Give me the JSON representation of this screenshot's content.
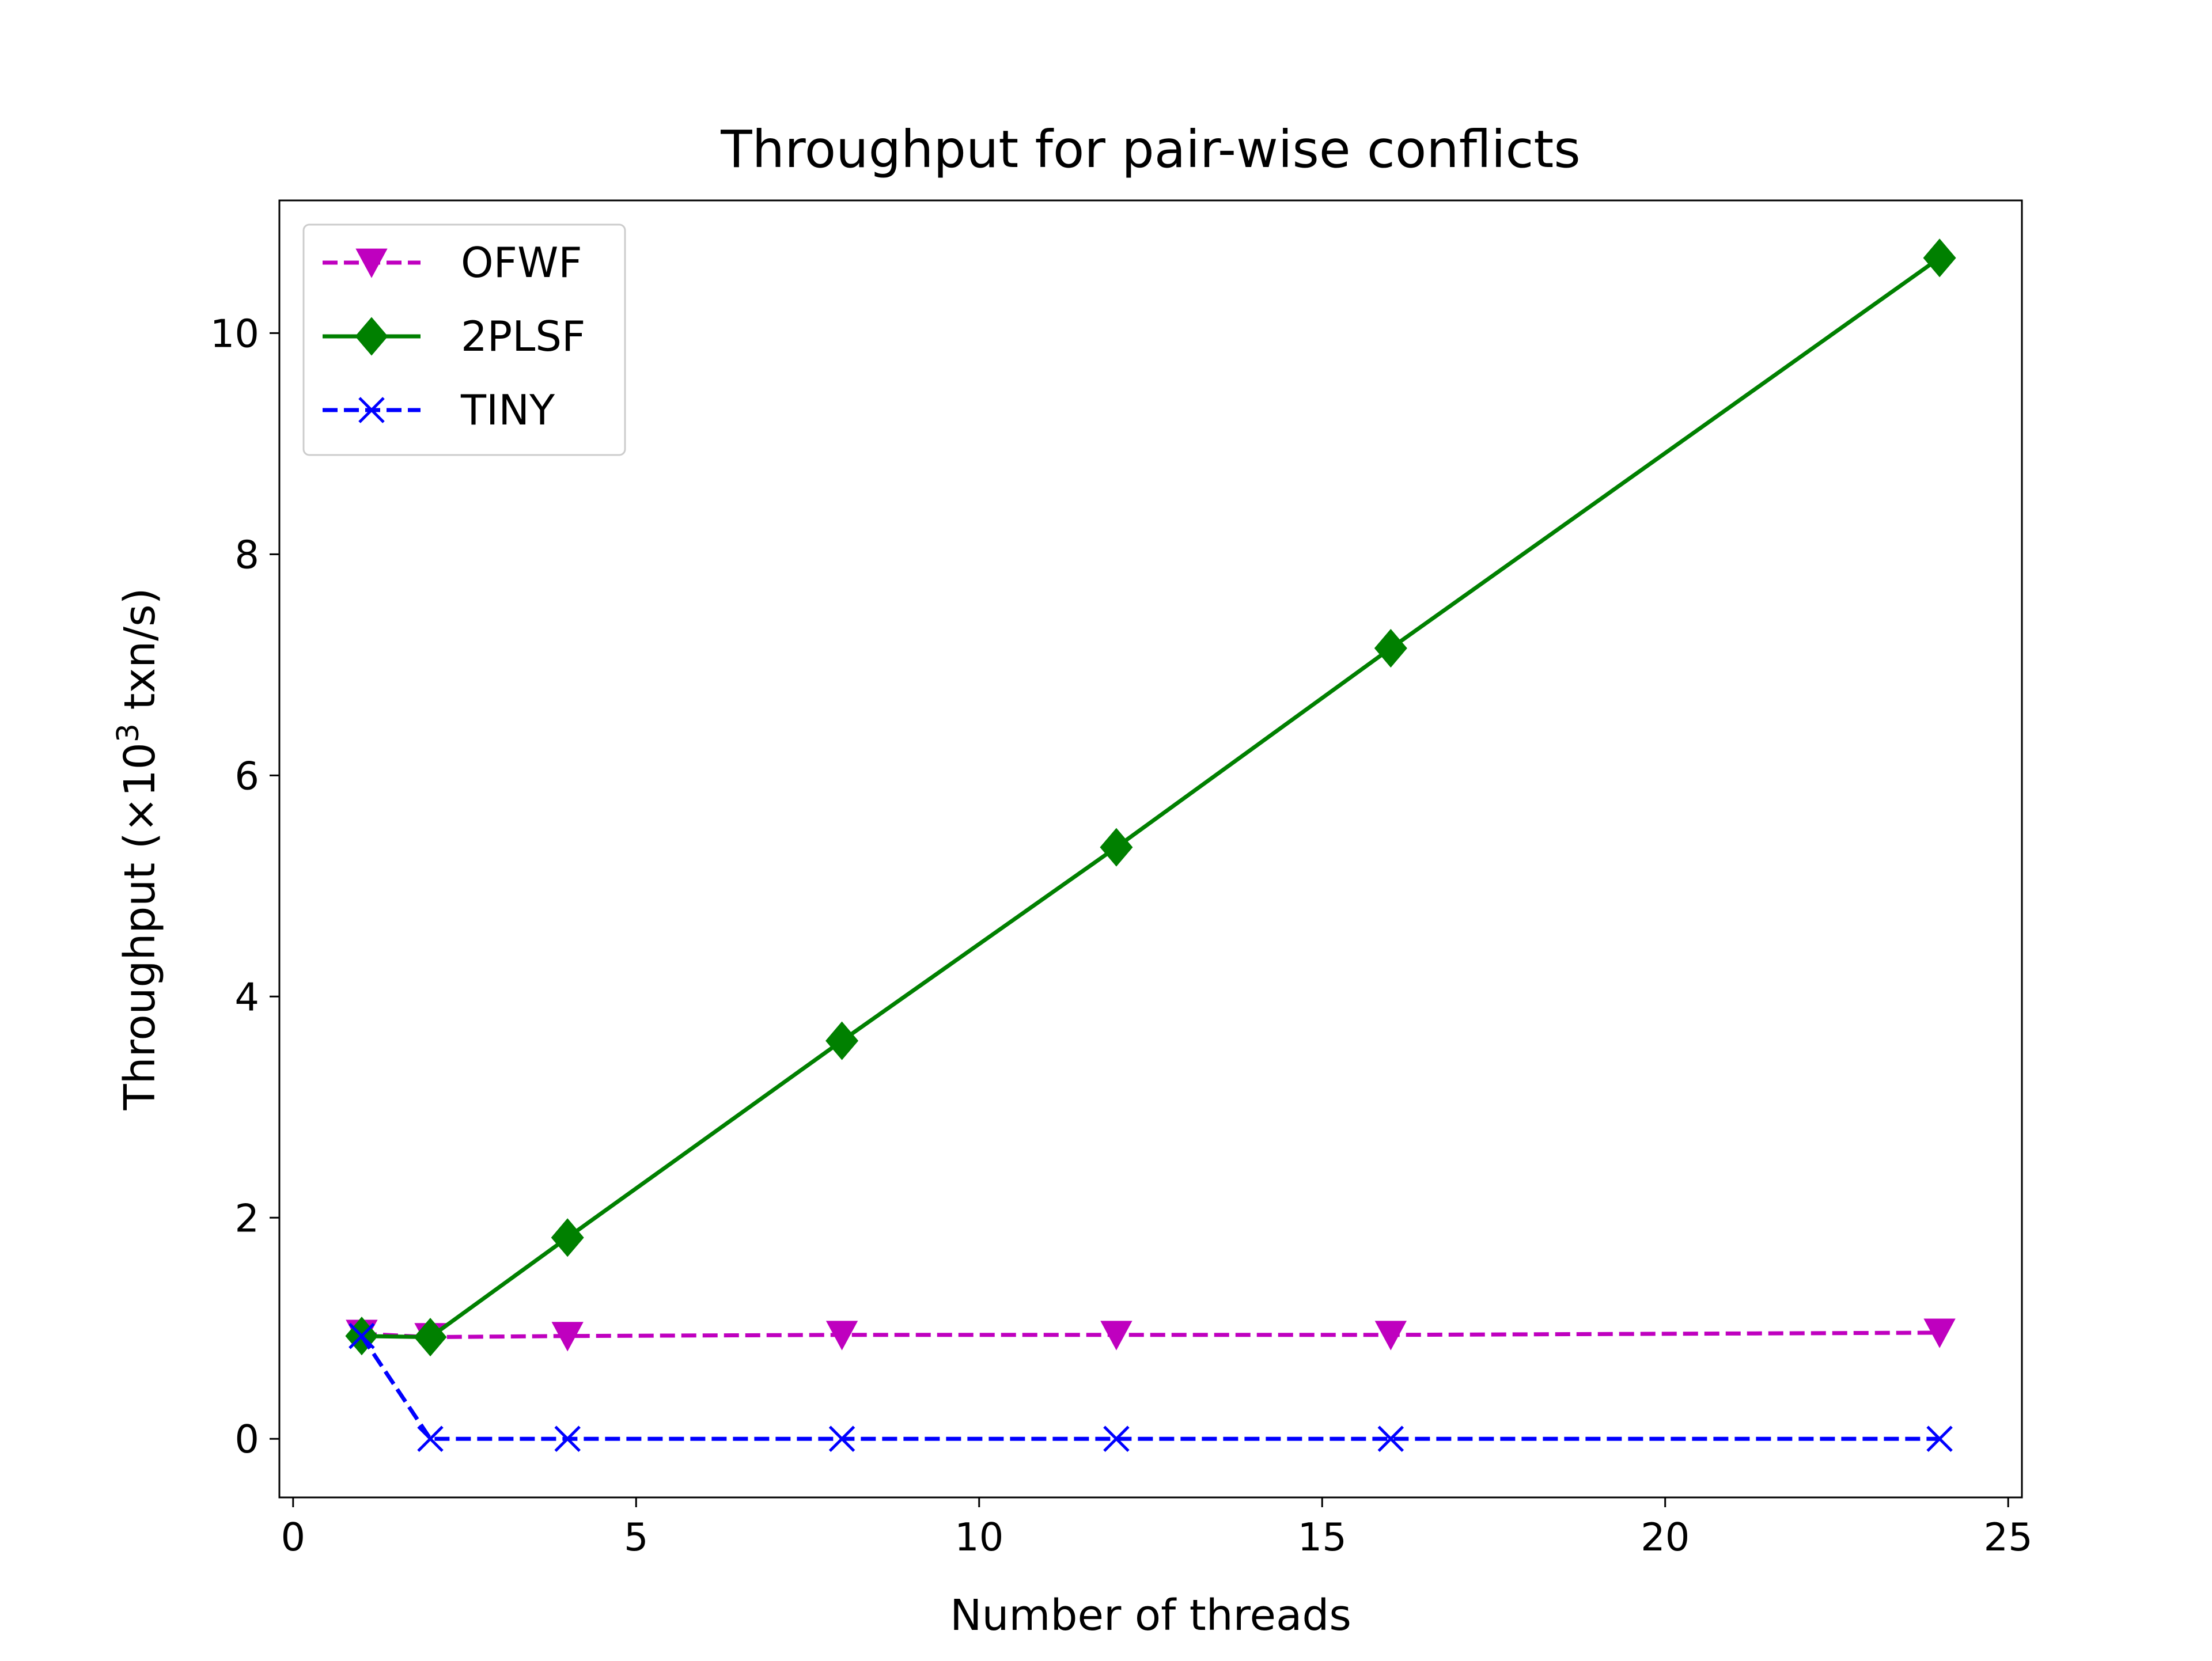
{
  "chart_data": {
    "type": "line",
    "title": "Throughput for pair-wise conflicts",
    "xlabel": "Number of threads",
    "ylabel_main": "Throughput (×10",
    "ylabel_sup": "3",
    "ylabel_tail": " txn/s)",
    "xlim": [
      -0.2,
      25.2
    ],
    "ylim": [
      -0.53,
      11.2
    ],
    "xticks": [
      0,
      5,
      10,
      15,
      20,
      25
    ],
    "yticks": [
      0,
      2,
      4,
      6,
      8,
      10
    ],
    "x": [
      1,
      2,
      4,
      8,
      12,
      16,
      24
    ],
    "grid": false,
    "legend_position": "top-left",
    "series": [
      {
        "name": "OFWF",
        "values": [
          0.95,
          0.92,
          0.93,
          0.94,
          0.94,
          0.94,
          0.96
        ],
        "color": "#bf00bf",
        "marker": "triangle-down",
        "linestyle": "dashed"
      },
      {
        "name": "2PLSF",
        "values": [
          0.93,
          0.92,
          1.82,
          3.6,
          5.35,
          7.15,
          10.68
        ],
        "color": "#008000",
        "marker": "diamond",
        "linestyle": "solid"
      },
      {
        "name": "TINY",
        "values": [
          0.93,
          0.0,
          0.0,
          0.0,
          0.0,
          0.0,
          0.0
        ],
        "color": "#0000ff",
        "marker": "x",
        "linestyle": "dashed"
      }
    ]
  }
}
